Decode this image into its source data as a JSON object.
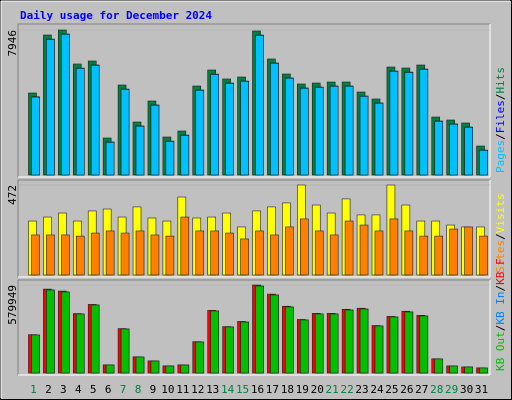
{
  "title": "Daily usage for December 2024",
  "legend_separator": "/",
  "chart_data": [
    {
      "type": "bar",
      "ylim": [
        0,
        7946
      ],
      "yticks": [
        7946
      ],
      "series": [
        {
          "name": "Hits",
          "color": "#008040",
          "values": [
            4494,
            7672,
            7946,
            6083,
            6247,
            2028,
            4932,
            2904,
            4055,
            2082,
            2411,
            4877,
            5754,
            5261,
            5370,
            7891,
            6357,
            5535,
            4987,
            5041,
            5096,
            5096,
            4548,
            4165,
            5918,
            5863,
            6028,
            3178,
            3014,
            2850,
            1589
          ]
        },
        {
          "name": "Files",
          "color": "#0000ff",
          "values": [
            4290,
            7450,
            7730,
            5860,
            6030,
            1810,
            4710,
            2690,
            3840,
            1860,
            2190,
            4660,
            5530,
            5040,
            5150,
            7670,
            6140,
            5320,
            4770,
            4820,
            4880,
            4880,
            4330,
            3950,
            5700,
            5640,
            5810,
            2960,
            2800,
            2630,
            1370
          ]
        },
        {
          "name": "Pages",
          "color": "#00c0ff",
          "values": [
            4270,
            7430,
            7710,
            5840,
            6010,
            1790,
            4690,
            2670,
            3820,
            1840,
            2170,
            4640,
            5510,
            5020,
            5130,
            7650,
            6120,
            5300,
            4750,
            4800,
            4860,
            4860,
            4310,
            3930,
            5680,
            5620,
            5790,
            2940,
            2780,
            2610,
            1350
          ]
        }
      ]
    },
    {
      "type": "bar",
      "ylim": [
        0,
        472
      ],
      "yticks": [
        472
      ],
      "series": [
        {
          "name": "Visits",
          "color": "#ffff00",
          "values": [
            283,
            304,
            325,
            283,
            336,
            346,
            304,
            357,
            299,
            283,
            409,
            299,
            304,
            325,
            252,
            336,
            357,
            378,
            472,
            367,
            325,
            399,
            315,
            315,
            472,
            367,
            283,
            283,
            262,
            252,
            252
          ]
        },
        {
          "name": "Sites",
          "color": "#ff8000",
          "values": [
            210,
            210,
            210,
            204,
            220,
            231,
            220,
            231,
            210,
            204,
            304,
            231,
            231,
            220,
            189,
            231,
            210,
            252,
            294,
            231,
            210,
            283,
            262,
            231,
            294,
            231,
            204,
            204,
            241,
            252,
            204
          ]
        }
      ]
    },
    {
      "type": "bar",
      "ylim": [
        0,
        579949
      ],
      "yticks": [
        579949
      ],
      "categories": [
        "1",
        "2",
        "3",
        "4",
        "5",
        "6",
        "7",
        "8",
        "9",
        "10",
        "11",
        "12",
        "13",
        "14",
        "15",
        "16",
        "17",
        "18",
        "19",
        "20",
        "21",
        "22",
        "23",
        "24",
        "25",
        "26",
        "27",
        "28",
        "29",
        "30",
        "31"
      ],
      "category_colors": [
        "#008040",
        "#000000",
        "#000000",
        "#000000",
        "#000000",
        "#000000",
        "#008040",
        "#008040",
        "#000000",
        "#000000",
        "#000000",
        "#000000",
        "#000000",
        "#008040",
        "#008040",
        "#000000",
        "#000000",
        "#000000",
        "#000000",
        "#000000",
        "#008040",
        "#008040",
        "#000000",
        "#000000",
        "#000000",
        "#000000",
        "#000000",
        "#008040",
        "#008040",
        "#000000",
        "#000000"
      ],
      "series": [
        {
          "name": "KB F",
          "color": "#ff0000",
          "values": [
            253000,
            553000,
            540000,
            392000,
            452000,
            54000,
            293000,
            107000,
            80000,
            47000,
            54000,
            207000,
            413000,
            306000,
            340000,
            579949,
            520000,
            440000,
            353000,
            393000,
            393000,
            420000,
            427000,
            313000,
            373000,
            407000,
            380000,
            94000,
            47000,
            40000,
            34000
          ]
        },
        {
          "name": "KB In",
          "color": "#0080ff",
          "values": [
            250431,
            547000,
            533820,
            388830,
            448140,
            52700,
            289970,
            105445,
            79084,
            46132,
            52723,
            204300,
            408600,
            303150,
            336100,
            573000,
            514050,
            434960,
            349290,
            388830,
            388830,
            415190,
            421780,
            309745,
            369060,
            402010,
            375650,
            92264,
            46132,
            39542,
            32951
          ]
        },
        {
          "name": "KB Out",
          "color": "#00c000",
          "values": [
            250431,
            547000,
            533820,
            388830,
            448140,
            52700,
            289970,
            105445,
            79084,
            46132,
            52723,
            204300,
            408600,
            303150,
            336100,
            573000,
            514050,
            434960,
            349290,
            388830,
            388830,
            415190,
            421780,
            309745,
            369060,
            402010,
            375650,
            92264,
            46132,
            39542,
            32951
          ]
        }
      ]
    }
  ]
}
